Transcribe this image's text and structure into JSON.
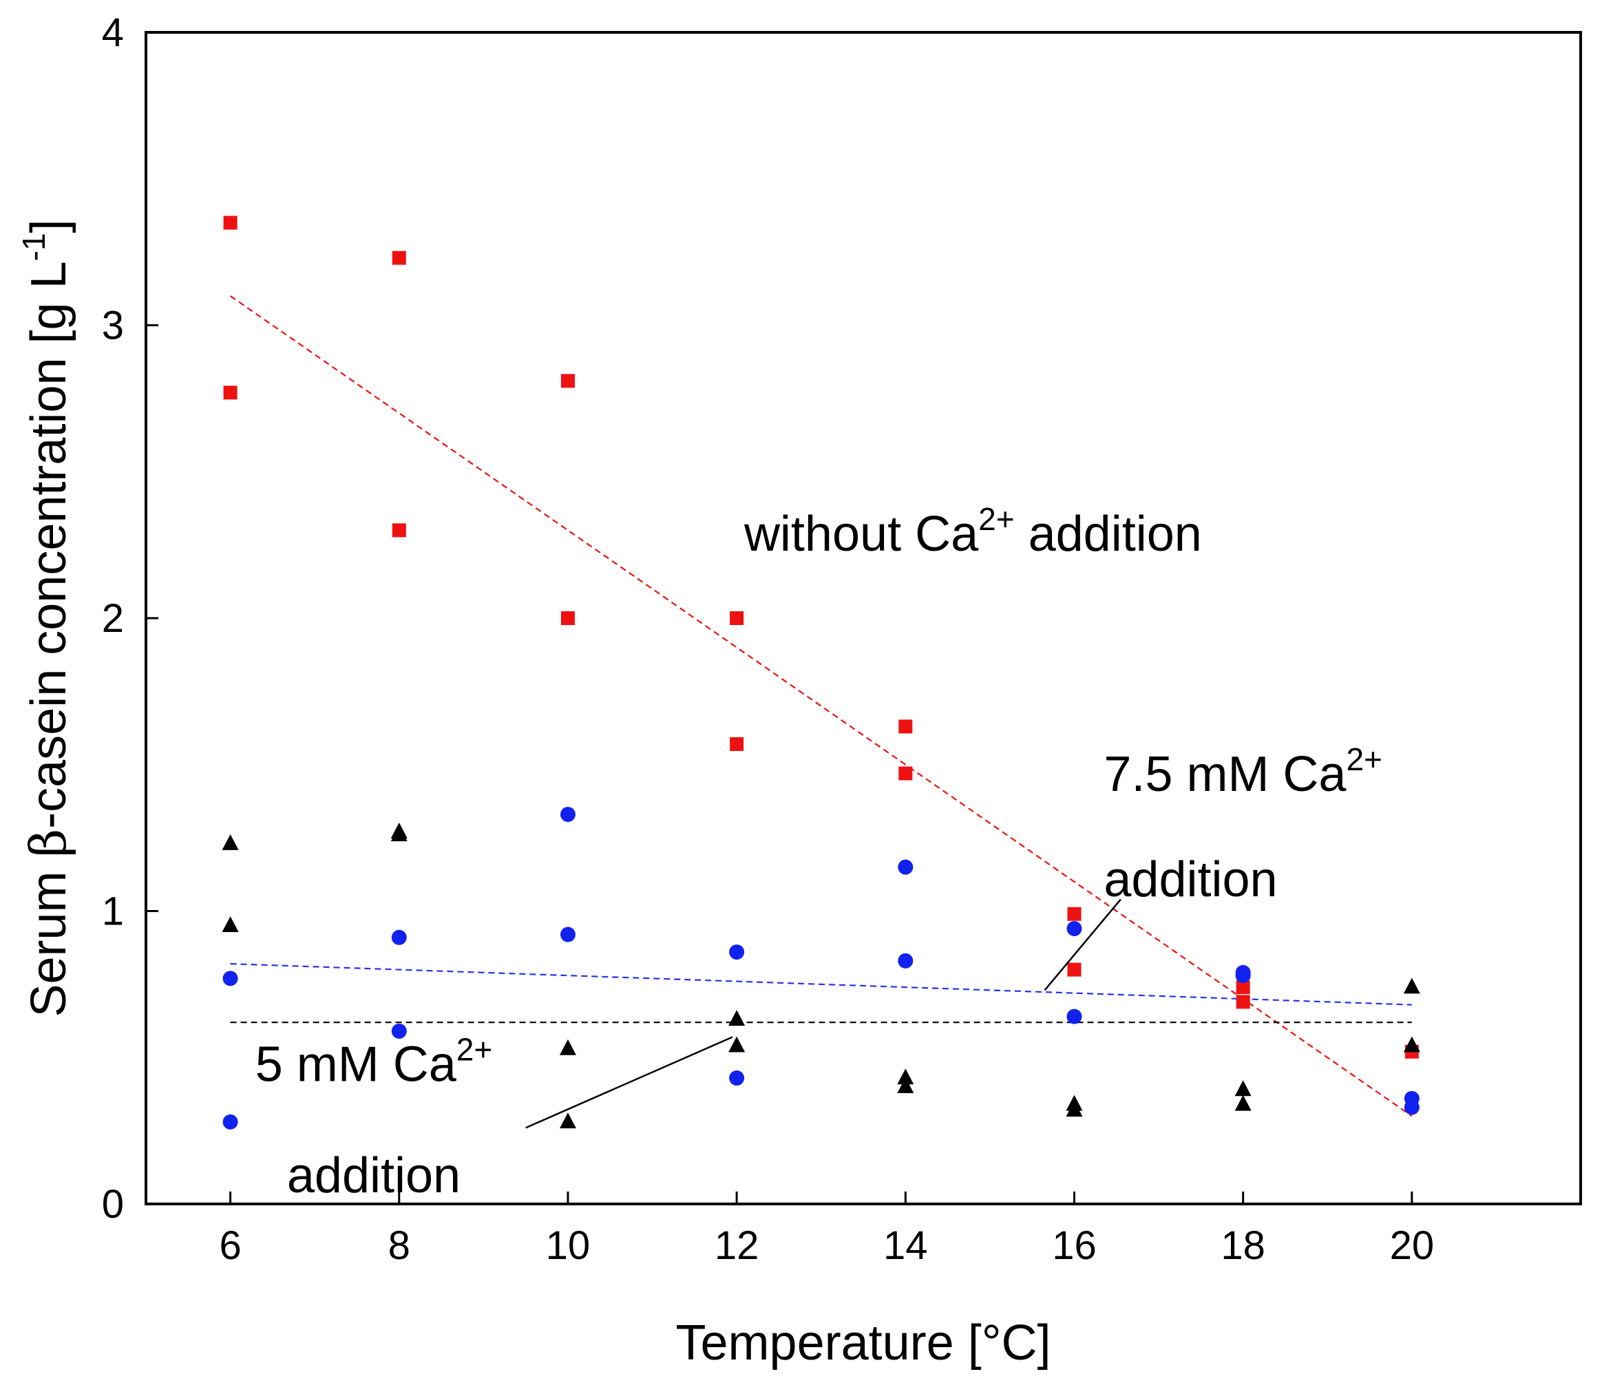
{
  "chart_data": {
    "type": "scatter",
    "xlabel": "Temperature [°C]",
    "ylabel": {
      "pre": "Serum ",
      "greek": "β",
      "post": "-casein concentration [g L",
      "sup": "-1",
      "close": "]"
    },
    "xlim": [
      5,
      22
    ],
    "ylim": [
      0,
      4
    ],
    "xticks": [
      6,
      8,
      10,
      12,
      14,
      16,
      18,
      20
    ],
    "yticks": [
      0,
      1,
      2,
      3,
      4
    ],
    "grid": false,
    "legend": "none",
    "series": [
      {
        "marker": "square",
        "color": "#ee1111",
        "points": [
          [
            6,
            3.35
          ],
          [
            6,
            2.77
          ],
          [
            8,
            3.23
          ],
          [
            8,
            2.3
          ],
          [
            10,
            2.81
          ],
          [
            10,
            2.0
          ],
          [
            12,
            2.0
          ],
          [
            12,
            1.57
          ],
          [
            14,
            1.63
          ],
          [
            14,
            1.47
          ],
          [
            16,
            0.99
          ],
          [
            16,
            0.8
          ],
          [
            18,
            0.74
          ],
          [
            18,
            0.69
          ],
          [
            20,
            0.52
          ]
        ],
        "trend": {
          "x": [
            6,
            20
          ],
          "y": [
            3.1,
            0.3
          ],
          "style": "dashed",
          "color": "#ee1111"
        }
      },
      {
        "marker": "circle",
        "color": "#1122ee",
        "points": [
          [
            6,
            0.77
          ],
          [
            6,
            0.28
          ],
          [
            8,
            0.91
          ],
          [
            8,
            0.59
          ],
          [
            10,
            1.33
          ],
          [
            10,
            0.92
          ],
          [
            12,
            0.86
          ],
          [
            12,
            0.43
          ],
          [
            14,
            1.15
          ],
          [
            14,
            0.83
          ],
          [
            16,
            0.94
          ],
          [
            16,
            0.64
          ],
          [
            18,
            0.79
          ],
          [
            18,
            0.78
          ],
          [
            20,
            0.36
          ],
          [
            20,
            0.33
          ]
        ],
        "trend": {
          "x": [
            6,
            20
          ],
          "y": [
            0.82,
            0.68
          ],
          "style": "dashed",
          "color": "#2233ee"
        }
      },
      {
        "marker": "triangle",
        "color": "#000000",
        "points": [
          [
            6,
            1.23
          ],
          [
            6,
            0.95
          ],
          [
            8,
            1.26
          ],
          [
            8,
            1.27
          ],
          [
            10,
            0.53
          ],
          [
            10,
            0.28
          ],
          [
            12,
            0.63
          ],
          [
            12,
            0.54
          ],
          [
            14,
            0.43
          ],
          [
            14,
            0.4
          ],
          [
            16,
            0.34
          ],
          [
            16,
            0.32
          ],
          [
            18,
            0.39
          ],
          [
            18,
            0.34
          ],
          [
            20,
            0.74
          ],
          [
            20,
            0.54
          ]
        ],
        "trend": {
          "x": [
            6,
            20
          ],
          "y": [
            0.62,
            0.62
          ],
          "style": "dashed",
          "color": "#000000"
        }
      }
    ],
    "annotations": [
      {
        "id": "without",
        "x": 14.8,
        "y": 2.23,
        "anchor": "middle",
        "pre": "without Ca",
        "sup": "2+",
        "post": " addition"
      },
      {
        "id": "ca75-line1",
        "x": 16.35,
        "y": 1.41,
        "anchor": "start",
        "pre": "7.5 mM Ca",
        "sup": "2+",
        "post": ""
      },
      {
        "id": "ca75-line2",
        "x": 16.35,
        "y": 1.05,
        "anchor": "start",
        "pre": "addition",
        "sup": "",
        "post": ""
      },
      {
        "id": "ca5-line1",
        "x": 7.7,
        "y": 0.42,
        "anchor": "middle",
        "pre": "5 mM Ca",
        "sup": "2+",
        "post": ""
      },
      {
        "id": "ca5-line2",
        "x": 7.7,
        "y": 0.04,
        "anchor": "middle",
        "pre": "addition",
        "sup": "",
        "post": ""
      }
    ],
    "leaders": [
      {
        "from": [
          16.55,
          1.04
        ],
        "to": [
          15.65,
          0.73
        ]
      },
      {
        "from": [
          11.95,
          0.57
        ],
        "to": [
          9.5,
          0.26
        ]
      }
    ]
  }
}
